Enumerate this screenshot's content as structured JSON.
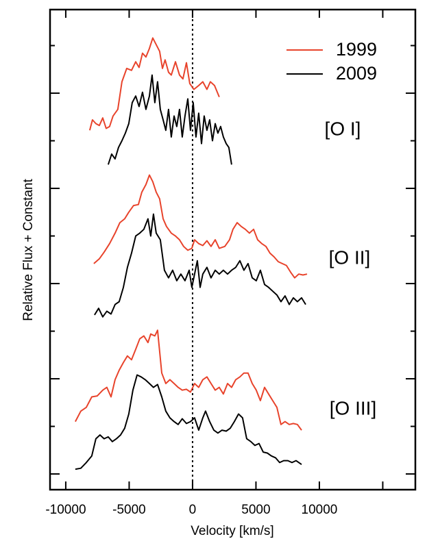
{
  "chart_data": {
    "type": "line",
    "x_label": "Velocity [km/s]",
    "y_label": "Relative Flux + Constant",
    "xlim": [
      -11240,
      17570
    ],
    "ylim": [
      0.835,
      5.878
    ],
    "xticks": [
      -10000,
      -5000,
      0,
      5000,
      10000
    ],
    "xticks_unlabeled": [
      15000
    ],
    "ytick_marks": [
      1,
      2,
      3,
      4,
      5
    ],
    "yminor_ticks": [
      1.5,
      2.5,
      3.5,
      4.5,
      5.5
    ],
    "vline": 0,
    "panels": [
      {
        "label": "[O I]",
        "series": [
          {
            "name": "1999",
            "color": "#e8432b",
            "x": [
              -8108,
              -7892,
              -7622,
              -7351,
              -7081,
              -6811,
              -6541,
              -6270,
              -5892,
              -5568,
              -5189,
              -4811,
              -4486,
              -4216,
              -3946,
              -3676,
              -3405,
              -3135,
              -2865,
              -2595,
              -2378,
              -2162,
              -1892,
              -1676,
              -1351,
              -1027,
              -757,
              -486,
              -216,
              108,
              486,
              811,
              1135,
              1405,
              1730,
              2108
            ],
            "values": [
              4.61,
              4.72,
              4.68,
              4.66,
              4.74,
              4.63,
              4.65,
              4.76,
              4.83,
              5.12,
              5.26,
              5.24,
              5.33,
              5.27,
              5.42,
              5.38,
              5.47,
              5.58,
              5.51,
              5.44,
              5.26,
              5.35,
              5.22,
              5.19,
              5.33,
              5.19,
              5.15,
              5.32,
              5.1,
              5.04,
              5.08,
              5.12,
              5.04,
              5.12,
              5.08,
              4.96
            ]
          },
          {
            "name": "2009",
            "color": "#000000",
            "x": [
              -6649,
              -6378,
              -6108,
              -5838,
              -5568,
              -5297,
              -5027,
              -4757,
              -4486,
              -4216,
              -3946,
              -3676,
              -3405,
              -3189,
              -2973,
              -2757,
              -2541,
              -2324,
              -2108,
              -1892,
              -1676,
              -1459,
              -1243,
              -1027,
              -811,
              -595,
              -378,
              -162,
              54,
              270,
              486,
              703,
              919,
              1135,
              1351,
              1568,
              1784,
              2000,
              2216,
              2432,
              2649,
              2865,
              3081
            ],
            "values": [
              4.25,
              4.36,
              4.31,
              4.43,
              4.5,
              4.58,
              4.68,
              4.9,
              4.97,
              4.86,
              5.01,
              4.83,
              4.97,
              5.19,
              4.9,
              5.12,
              4.83,
              4.72,
              4.61,
              4.83,
              4.54,
              4.76,
              4.65,
              4.83,
              4.54,
              4.76,
              4.94,
              4.61,
              4.9,
              4.54,
              4.79,
              4.47,
              4.76,
              4.61,
              4.72,
              4.5,
              4.68,
              4.58,
              4.65,
              4.54,
              4.47,
              4.43,
              4.25
            ]
          }
        ]
      },
      {
        "label": "[O II]",
        "series": [
          {
            "name": "1999",
            "color": "#e8432b",
            "x": [
              -7784,
              -7351,
              -6973,
              -6541,
              -6108,
              -5730,
              -5351,
              -5027,
              -4649,
              -4270,
              -4000,
              -3676,
              -3405,
              -3135,
              -2865,
              -2595,
              -2324,
              -2054,
              -1676,
              -1351,
              -1027,
              -703,
              -378,
              -54,
              162,
              486,
              811,
              1135,
              1459,
              1784,
              2108,
              2541,
              2919,
              3189,
              3514,
              3838,
              4162,
              4486,
              4811,
              5135,
              5459,
              5784,
              6108,
              6432,
              6757,
              7081,
              7405,
              7730,
              8054,
              8378,
              8703,
              9027
            ],
            "values": [
              3.21,
              3.26,
              3.33,
              3.42,
              3.53,
              3.64,
              3.68,
              3.75,
              3.82,
              3.83,
              3.96,
              4.04,
              4.14,
              4.07,
              3.96,
              3.89,
              3.68,
              3.6,
              3.53,
              3.5,
              3.46,
              3.39,
              3.35,
              3.37,
              3.46,
              3.42,
              3.4,
              3.45,
              3.39,
              3.46,
              3.37,
              3.39,
              3.46,
              3.57,
              3.64,
              3.6,
              3.57,
              3.53,
              3.57,
              3.46,
              3.42,
              3.39,
              3.32,
              3.28,
              3.23,
              3.21,
              3.19,
              3.12,
              3.06,
              3.1,
              3.09,
              3.1
            ]
          },
          {
            "name": "2009",
            "color": "#000000",
            "x": [
              -7730,
              -7405,
              -7081,
              -6757,
              -6432,
              -6108,
              -5784,
              -5459,
              -5135,
              -4811,
              -4486,
              -4162,
              -3838,
              -3514,
              -3297,
              -3081,
              -2865,
              -2541,
              -2216,
              -1892,
              -1568,
              -1243,
              -919,
              -595,
              -270,
              -54,
              162,
              378,
              595,
              811,
              1135,
              1459,
              1784,
              2108,
              2432,
              2757,
              3081,
              3405,
              3730,
              4054,
              4378,
              4703,
              5027,
              5351,
              5676,
              6000,
              6324,
              6649,
              6973,
              7297,
              7622,
              7946,
              8270,
              8595,
              8919
            ],
            "values": [
              2.67,
              2.74,
              2.65,
              2.71,
              2.68,
              2.78,
              2.81,
              2.96,
              3.17,
              3.32,
              3.5,
              3.53,
              3.57,
              3.68,
              3.5,
              3.73,
              3.53,
              3.46,
              3.14,
              3.06,
              3.14,
              3.03,
              3.1,
              3.03,
              3.14,
              2.96,
              3.1,
              3.24,
              2.96,
              3.1,
              3.17,
              3.06,
              3.14,
              3.1,
              3.14,
              3.1,
              3.14,
              3.17,
              3.24,
              3.14,
              3.21,
              3.06,
              3.03,
              3.14,
              2.99,
              2.96,
              2.92,
              2.88,
              2.81,
              2.87,
              2.78,
              2.85,
              2.81,
              2.85,
              2.78
            ]
          }
        ]
      },
      {
        "label": "[O III]",
        "series": [
          {
            "name": "1999",
            "color": "#e8432b",
            "x": [
              -9243,
              -8811,
              -8378,
              -7946,
              -7514,
              -7081,
              -6757,
              -6432,
              -6108,
              -5784,
              -5459,
              -5135,
              -4811,
              -4486,
              -4162,
              -3838,
              -3514,
              -3297,
              -2973,
              -2757,
              -2432,
              -2108,
              -1784,
              -1459,
              -1135,
              -811,
              -486,
              -162,
              162,
              486,
              811,
              1135,
              1459,
              1784,
              2108,
              2432,
              2757,
              3081,
              3405,
              3730,
              4054,
              4378,
              4703,
              5027,
              5351,
              5676,
              6000,
              6324,
              6649,
              6973,
              7297,
              7622,
              7946,
              8270,
              8595
            ],
            "values": [
              1.55,
              1.66,
              1.7,
              1.81,
              1.82,
              1.88,
              1.91,
              1.81,
              1.99,
              2.09,
              2.17,
              2.24,
              2.2,
              2.31,
              2.42,
              2.45,
              2.38,
              2.47,
              2.45,
              2.51,
              2.06,
              1.95,
              1.99,
              1.95,
              1.91,
              1.88,
              1.89,
              1.86,
              1.95,
              1.91,
              1.99,
              2.02,
              1.95,
              1.88,
              1.91,
              1.84,
              1.95,
              1.91,
              1.99,
              2.02,
              2.06,
              2.06,
              1.95,
              1.88,
              1.77,
              1.91,
              1.84,
              1.77,
              1.7,
              1.52,
              1.55,
              1.52,
              1.53,
              1.52,
              1.46
            ]
          },
          {
            "name": "2009",
            "color": "#000000",
            "x": [
              -9243,
              -8811,
              -8378,
              -7946,
              -7622,
              -7297,
              -6973,
              -6649,
              -6324,
              -6000,
              -5676,
              -5351,
              -5027,
              -4703,
              -4378,
              -4054,
              -3730,
              -3405,
              -3081,
              -2757,
              -2432,
              -2108,
              -1784,
              -1459,
              -1135,
              -811,
              -486,
              -162,
              162,
              486,
              811,
              1027,
              1351,
              1676,
              2000,
              2324,
              2649,
              2973,
              3297,
              3622,
              3946,
              4270,
              4595,
              4919,
              5243,
              5568,
              5892,
              6216,
              6541,
              6865,
              7189,
              7514,
              7838,
              8162,
              8595
            ],
            "values": [
              1.05,
              1.06,
              1.12,
              1.19,
              1.37,
              1.41,
              1.37,
              1.39,
              1.34,
              1.37,
              1.41,
              1.48,
              1.63,
              1.88,
              2.04,
              2.02,
              1.99,
              1.95,
              1.91,
              1.94,
              1.81,
              1.66,
              1.59,
              1.55,
              1.52,
              1.58,
              1.53,
              1.55,
              1.59,
              1.46,
              1.59,
              1.66,
              1.55,
              1.46,
              1.43,
              1.46,
              1.45,
              1.48,
              1.55,
              1.63,
              1.59,
              1.37,
              1.34,
              1.3,
              1.32,
              1.23,
              1.22,
              1.19,
              1.17,
              1.12,
              1.14,
              1.14,
              1.12,
              1.14,
              1.1
            ]
          }
        ]
      }
    ]
  }
}
